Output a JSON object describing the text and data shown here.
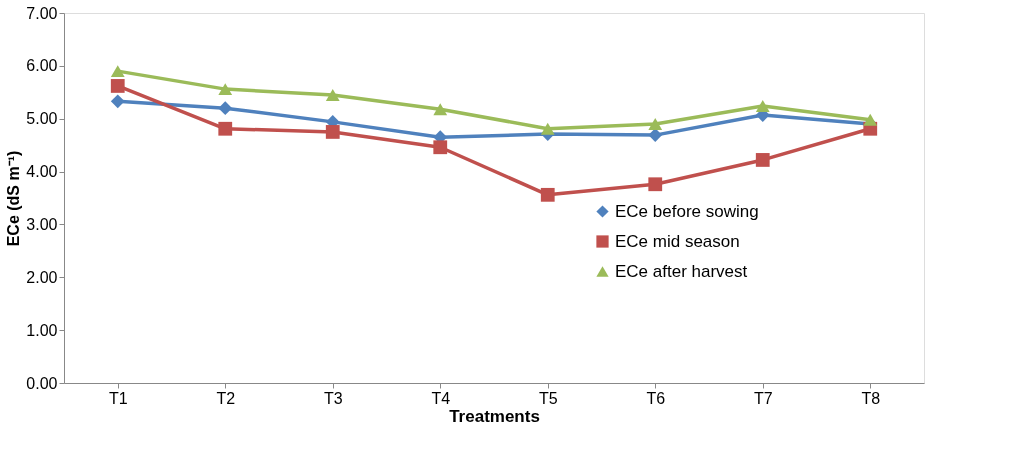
{
  "chart_data": {
    "type": "line",
    "xlabel": "Treatments",
    "ylabel": "ECe (dS m⁻¹)",
    "categories": [
      "T1",
      "T2",
      "T3",
      "T4",
      "T5",
      "T6",
      "T7",
      "T8"
    ],
    "series": [
      {
        "name": "ECe before sowing",
        "color": "#4f81bd",
        "marker": "diamond",
        "values": [
          5.33,
          5.2,
          4.94,
          4.65,
          4.71,
          4.69,
          5.07,
          4.9
        ]
      },
      {
        "name": "ECe mid season",
        "color": "#c0504d",
        "marker": "square",
        "values": [
          5.62,
          4.81,
          4.75,
          4.46,
          3.56,
          3.76,
          4.22,
          4.81
        ]
      },
      {
        "name": "ECe after harvest",
        "color": "#9bbb59",
        "marker": "triangle",
        "values": [
          5.9,
          5.56,
          5.45,
          5.18,
          4.81,
          4.9,
          5.24,
          4.98
        ]
      }
    ],
    "ylim": [
      0,
      7
    ],
    "yticks": [
      {
        "value": 0,
        "label": "0.00"
      },
      {
        "value": 1,
        "label": "1.00"
      },
      {
        "value": 2,
        "label": "2.00"
      },
      {
        "value": 3,
        "label": "3.00"
      },
      {
        "value": 4,
        "label": "4.00"
      },
      {
        "value": 5,
        "label": "5.00"
      },
      {
        "value": 6,
        "label": "6.00"
      },
      {
        "value": 7,
        "label": "7.00"
      }
    ],
    "grid": false,
    "legend": "right",
    "line_style": "solid"
  }
}
